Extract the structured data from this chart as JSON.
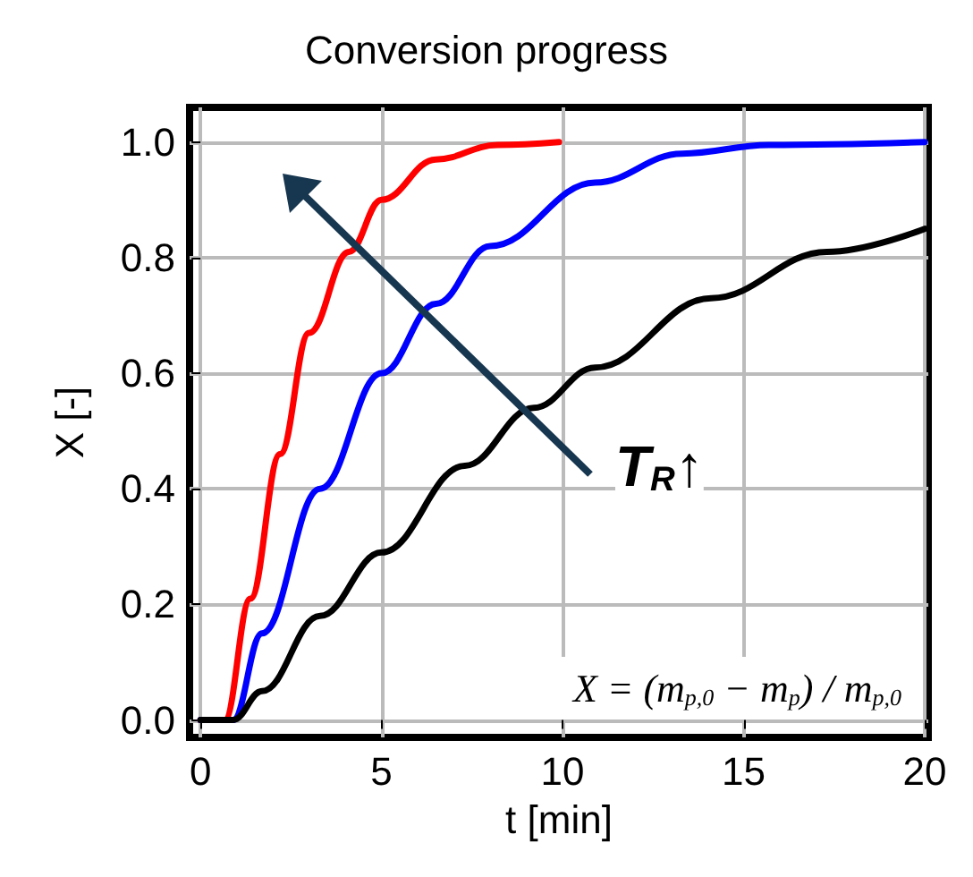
{
  "chart_data": {
    "type": "line",
    "title": "Conversion progress",
    "xlabel": "t [min]",
    "ylabel": "X [-]",
    "xlim": [
      -0.3,
      20.1
    ],
    "ylim": [
      -0.03,
      1.06
    ],
    "xticks": [
      0,
      5,
      10,
      15,
      20
    ],
    "yticks": [
      {
        "value": 0,
        "label": "0.0"
      },
      {
        "value": 0.2,
        "label": "0.2"
      },
      {
        "value": 0.4,
        "label": "0.4"
      },
      {
        "value": 0.6,
        "label": "0.6"
      },
      {
        "value": 0.8,
        "label": "0.8"
      },
      {
        "value": 1,
        "label": "1.0"
      }
    ],
    "grid": true,
    "marker": "none",
    "line_style": "solid",
    "series": [
      {
        "color": "#ff0000",
        "x": [
          0,
          0.67,
          1.38,
          2.2,
          3.0,
          4.1,
          5.0,
          6.5,
          8.2,
          9.9
        ],
        "values": [
          0,
          0,
          0.21,
          0.46,
          0.67,
          0.81,
          0.9,
          0.97,
          0.995,
          1.0
        ]
      },
      {
        "color": "#0000ff",
        "x": [
          0,
          0.9,
          1.7,
          3.3,
          5.0,
          6.5,
          8.0,
          10.9,
          13.3,
          15.7,
          20
        ],
        "values": [
          0,
          0,
          0.15,
          0.4,
          0.6,
          0.72,
          0.82,
          0.93,
          0.98,
          0.995,
          1.0
        ]
      },
      {
        "color": "#000000",
        "x": [
          0,
          0.9,
          1.7,
          3.3,
          5.0,
          7.3,
          9.2,
          10.9,
          14.1,
          17.3,
          20
        ],
        "values": [
          0,
          0,
          0.05,
          0.18,
          0.29,
          0.44,
          0.54,
          0.61,
          0.73,
          0.81,
          0.85
        ]
      }
    ],
    "annotations": [
      "T$_{R}$↑",
      "X = (m$_{p,0}$ − m$_{p}$) / m$_{p,0}$"
    ]
  }
}
